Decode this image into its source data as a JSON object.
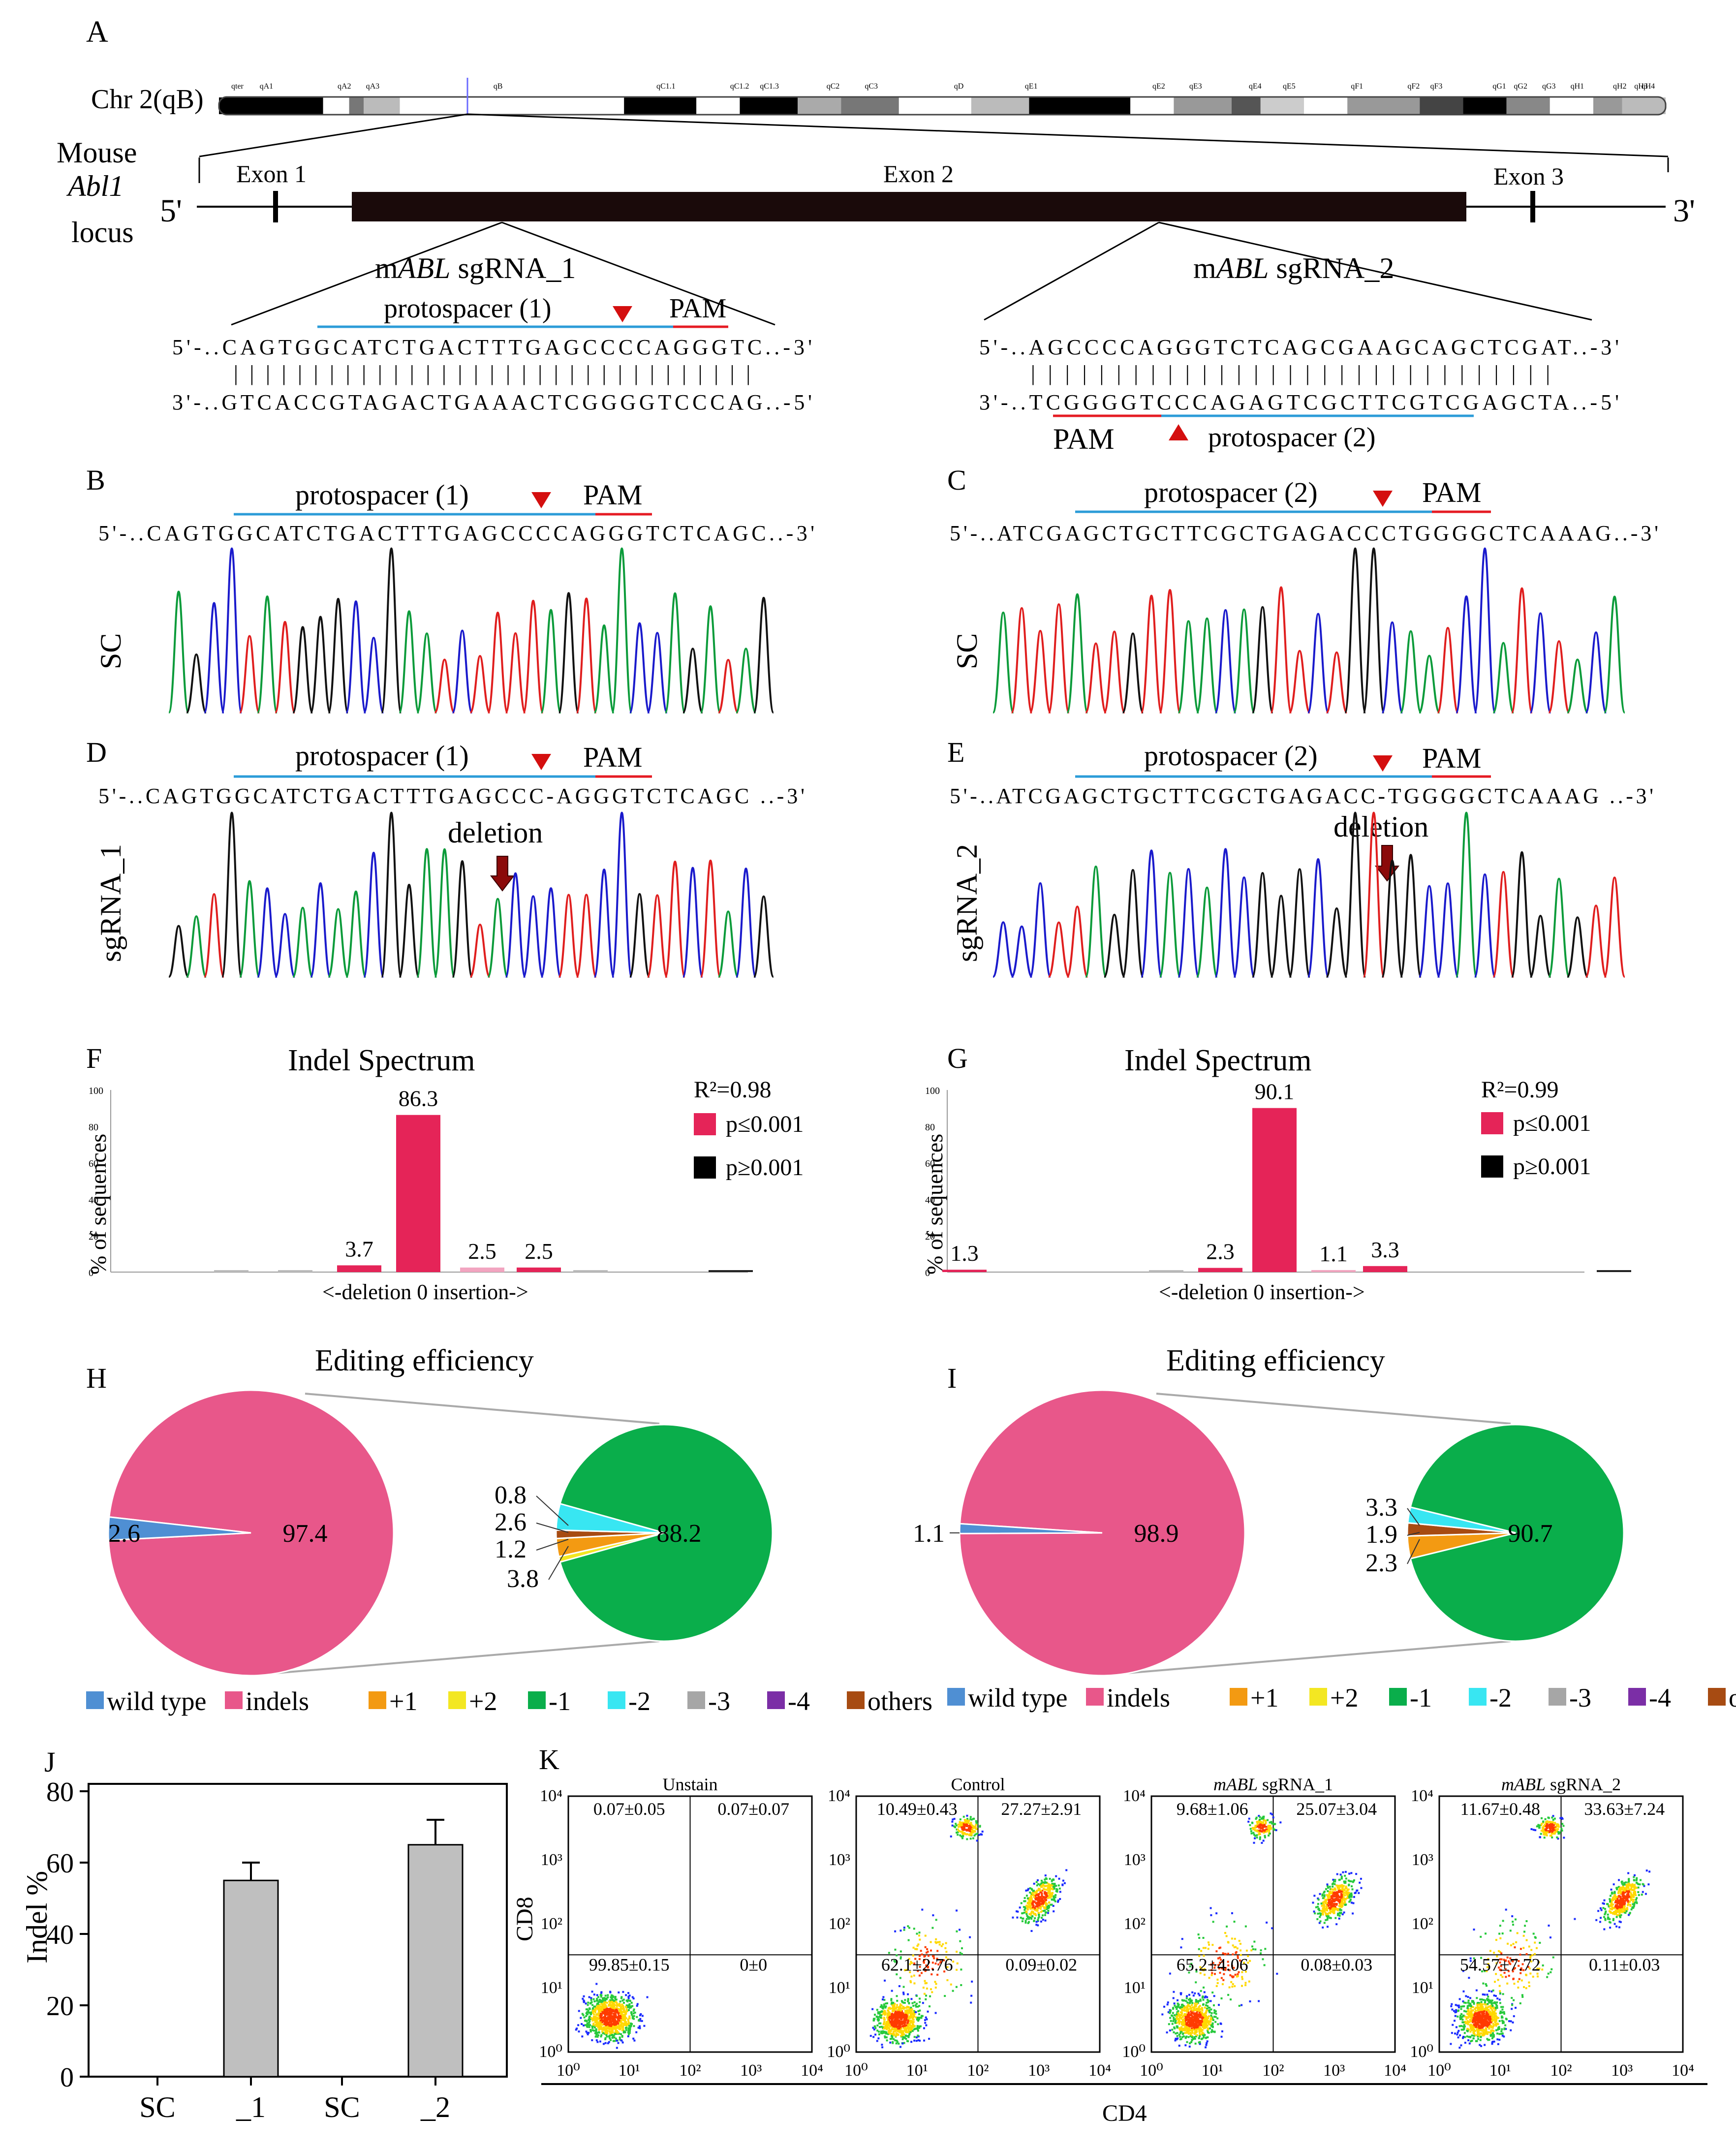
{
  "panels": {
    "A": "A",
    "B": "B",
    "C": "C",
    "D": "D",
    "E": "E",
    "F": "F",
    "G": "G",
    "H": "H",
    "I": "I",
    "J": "J",
    "K": "K"
  },
  "panel_a": {
    "chrom_label": "Chr 2(qB)",
    "band_labels": [
      "qter",
      "qA1",
      "qA2",
      "qA3",
      "qB",
      "qC1.1",
      "qC1.2",
      "qC1.3",
      "qC2",
      "qC3",
      "qD",
      "qE1",
      "qE2",
      "qE3",
      "qE4",
      "qE5",
      "qF1",
      "qF2",
      "qF3",
      "qG1",
      "qG2",
      "qG3",
      "qH1",
      "qH2",
      "qH3",
      "qH4"
    ],
    "locus_label": [
      "Mouse",
      "Abl1",
      "locus"
    ],
    "five_prime": "5'",
    "three_prime": "3'",
    "exon1": "Exon 1",
    "exon2": "Exon 2",
    "exon3": "Exon 3",
    "sg1_prefix": "m",
    "sg1_gene": "ABL",
    "sg1_suffix": " sgRNA_1",
    "sg2_prefix": "m",
    "sg2_gene": "ABL",
    "sg2_suffix": " sgRNA_2",
    "sg1_protospacer": "protospacer (1)",
    "sg1_pam": "PAM",
    "sg1_top": "5'-..CAGTGGCATCTGACTTTGAGCCCCAGGGTC..-3'",
    "sg1_pairs": "|||||||||||||||||||||||||||||||||",
    "sg1_bottom": "3'-..GTCACCGTAGACTGAAACTCGGGGTCCCAG..-5'",
    "sg2_top": "5'-..AGCCCCAGGGTCTCAGCGAAGCAGCTCGAT..-3'",
    "sg2_pairs": "|||||||||||||||||||||||||||||||",
    "sg2_bottom": "3'-..TCGGGGTCCCAGAGTCGCTTCGTCGAGCTA..-5'",
    "sg2_pam": "PAM",
    "sg2_protospacer": "protospacer (2)"
  },
  "panel_b": {
    "protospacer": "protospacer (1)",
    "pam": "PAM",
    "seq": "5'-..CAGTGGCATCTGACTTTGAGCCCCAGGGTCTCAGC..-3'",
    "trace_label": "SC"
  },
  "panel_c": {
    "protospacer": "protospacer (2)",
    "pam": "PAM",
    "seq": "5'-..ATCGAGCTGCTTCGCTGAGACCCTGGGGCTCAAAG..-3'",
    "trace_label": "SC"
  },
  "panel_d": {
    "protospacer": "protospacer (1)",
    "pam": "PAM",
    "seq": "5'-..CAGTGGCATCTGACTTTGAGCCC-AGGGTCTCAGC ..-3'",
    "trace_label": "sgRNA_1",
    "deletion": "deletion"
  },
  "panel_e": {
    "protospacer": "protospacer (2)",
    "pam": "PAM",
    "seq": "5'-..ATCGAGCTGCTTCGCTGAGACC-TGGGGCTCAAAG ..-3'",
    "trace_label": "sgRNA_2",
    "deletion": "deletion"
  },
  "legend_fg": {
    "r2_f": "R²=0.98",
    "r2_g": "R²=0.99",
    "p_low": "p≤0.001",
    "p_high": "p≥0.001"
  },
  "legend_hi": [
    "wild type",
    "indels",
    "+1",
    "+2",
    "-1",
    "-2",
    "-3",
    "-4",
    "others"
  ],
  "colors": {
    "pink": "#E8578A",
    "wt_blue": "#4F8FD3",
    "green": "#0AAE4B",
    "orange": "#F39A12",
    "yellow": "#F3E722",
    "cyan": "#38E6F2",
    "grey": "#A6A6A6",
    "purple": "#7B2EA6",
    "brown": "#A74B12",
    "bar_red": "#E52458",
    "line_blue": "#2C9CD8",
    "pam_red": "#E51B23",
    "bar_grey": "#BFBFBF"
  },
  "panel_j": {
    "ylabel": "Indel %",
    "categories": [
      "SC",
      "_1",
      "SC",
      "_2"
    ],
    "yticks": [
      "0",
      "20",
      "40",
      "60",
      "80"
    ]
  },
  "panel_k": {
    "xlabel": "CD4",
    "ylabel": "CD8",
    "ticks": [
      "10⁰",
      "10¹",
      "10²",
      "10³",
      "10⁴"
    ],
    "plots": [
      {
        "title_plain": "Unstain",
        "ul": "0.07±0.05",
        "ur": "0.07±0.07",
        "ll": "99.85±0.15",
        "lr": "0±0"
      },
      {
        "title_plain": "Control",
        "ul": "10.49±0.43",
        "ur": "27.27±2.91",
        "ll": "62.1±2.76",
        "lr": "0.09±0.02"
      },
      {
        "title_italic": "mABL",
        "title_rest": " sgRNA_1",
        "ul": "9.68±1.06",
        "ur": "25.07±3.04",
        "ll": "65.2±4.06",
        "lr": "0.08±0.03"
      },
      {
        "title_italic": "mABL",
        "title_rest": " sgRNA_2",
        "ul": "11.67±0.48",
        "ur": "33.63±7.24",
        "ll": "54.57±7.72",
        "lr": "0.11±0.03"
      }
    ]
  },
  "chart_data": [
    {
      "type": "bar",
      "title": "Indel Spectrum",
      "ylabel": "% of sequences",
      "xlabel": "<-deletion  0  insertion->",
      "ylim": [
        0,
        100
      ],
      "yticks": [
        "0",
        "20",
        "40",
        "60",
        "80",
        "100"
      ],
      "values": [
        0.5,
        0.5,
        3.7,
        86.3,
        2.5,
        2.5,
        0.5,
        0,
        1.0
      ],
      "labels": [
        "",
        "",
        "3.7",
        "86.3",
        "2.5",
        "2.5",
        "",
        "",
        ""
      ]
    },
    {
      "type": "bar",
      "title": "Indel Spectrum",
      "ylabel": "% of sequences",
      "xlabel": "<-deletion  0  insertion->",
      "ylim": [
        0,
        100
      ],
      "yticks": [
        "0",
        "20",
        "40",
        "60",
        "80",
        "100"
      ],
      "values": [
        1.3,
        0.5,
        2.3,
        90.1,
        1.1,
        3.3,
        0.5
      ],
      "labels": [
        "1.3",
        "",
        "2.3",
        "90.1",
        "1.1",
        "3.3",
        ""
      ]
    },
    {
      "type": "pie",
      "title": "Editing efficiency",
      "big": {
        "slices": [
          {
            "name": "wild type",
            "value": 2.6,
            "label": "2.6"
          },
          {
            "name": "indels",
            "value": 97.4,
            "label": "97.4"
          }
        ]
      },
      "small": {
        "slices": [
          {
            "name": "-1",
            "value": 88.2,
            "label": "88.2"
          },
          {
            "name": "+2",
            "value": 0.8,
            "label": "0.8"
          },
          {
            "name": "+1",
            "value": 2.6,
            "label": "2.6"
          },
          {
            "name": "others",
            "value": 1.2,
            "label": "1.2"
          },
          {
            "name": "-2",
            "value": 3.8,
            "label": "3.8"
          }
        ]
      }
    },
    {
      "type": "pie",
      "title": "Editing efficiency",
      "big": {
        "slices": [
          {
            "name": "wild type",
            "value": 1.1,
            "label": "1.1"
          },
          {
            "name": "indels",
            "value": 98.9,
            "label": "98.9"
          }
        ]
      },
      "small": {
        "slices": [
          {
            "name": "-1",
            "value": 90.7,
            "label": "90.7"
          },
          {
            "name": "+1",
            "value": 3.3,
            "label": "3.3"
          },
          {
            "name": "others",
            "value": 1.9,
            "label": "1.9"
          },
          {
            "name": "-2",
            "value": 2.3,
            "label": "2.3"
          }
        ]
      }
    },
    {
      "type": "bar",
      "ylabel": "Indel %",
      "categories": [
        "SC",
        "_1",
        "SC",
        "_2"
      ],
      "values": [
        0,
        55,
        0,
        65
      ],
      "errors": [
        0,
        5,
        0,
        7
      ],
      "ylim": [
        0,
        80
      ]
    }
  ]
}
